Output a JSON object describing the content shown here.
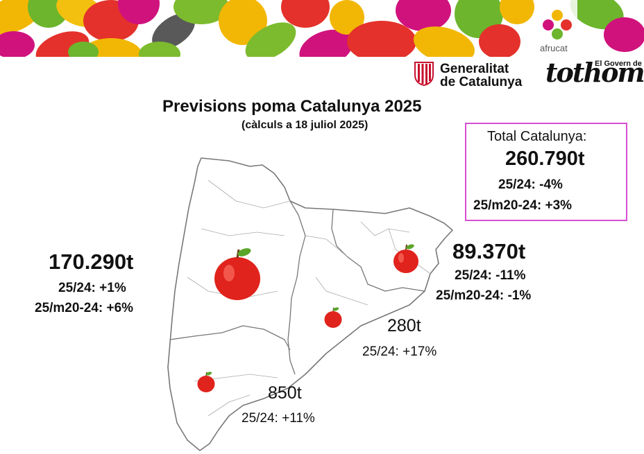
{
  "header": {
    "afrucat_label": "afrucat",
    "generalitat_line1": "Generalitat",
    "generalitat_line2": "de Catalunya",
    "govern_label": "El Govern de",
    "tothom_label": "tothom"
  },
  "title": "Previsions poma Catalunya 2025",
  "subtitle": "(càlculs a 18 juliol 2025)",
  "total": {
    "heading": "Total Catalunya:",
    "value": "260.790t",
    "yoy": "25/24:  -4%",
    "vs_avg": "25/m20-24:    +3%"
  },
  "regions": {
    "lleida": {
      "value": "170.290t",
      "yoy": "25/24:  +1%",
      "vs_avg": "25/m20-24:   +6%"
    },
    "girona": {
      "value": "89.370t",
      "yoy": "25/24:  -11%",
      "vs_avg": "25/m20-24:   -1%"
    },
    "barcelona": {
      "value": "280t",
      "yoy": "25/24: +17%"
    },
    "tarragona": {
      "value": "850t",
      "yoy": "25/24:  +11%"
    }
  },
  "colors": {
    "border_accent": "#d64fd2",
    "apple_red": "#e0231c",
    "leaf_green": "#5aa52a"
  }
}
